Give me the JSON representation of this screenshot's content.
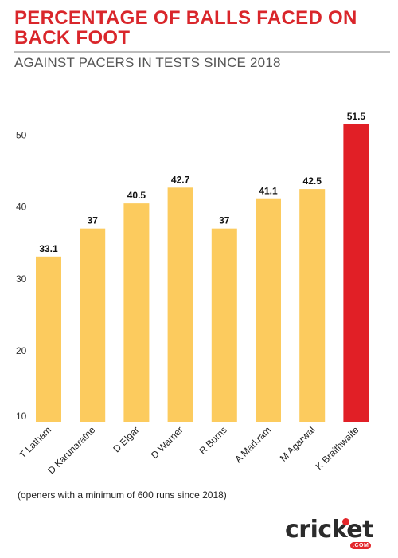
{
  "header": {
    "title": "PERCENTAGE OF BALLS FACED ON BACK FOOT",
    "subtitle": "AGAINST PACERS IN TESTS SINCE 2018"
  },
  "footnote": "(openers with a minimum of 600 runs since 2018)",
  "brand": {
    "name": "cricket",
    "suffix": ".COM",
    "accent": "#e3262b"
  },
  "colors": {
    "bar": "#fccb5e",
    "highlight": "#e11f26",
    "title": "#d9262b"
  },
  "chart_data": {
    "type": "bar",
    "title": "PERCENTAGE OF BALLS FACED ON BACK FOOT",
    "subtitle": "AGAINST PACERS IN TESTS SINCE 2018",
    "categories": [
      "T Latham",
      "D Karunaratne",
      "D Elgar",
      "D Warner",
      "R Burns",
      "A Markram",
      "M Agarwal",
      "K Braithwaite"
    ],
    "values": [
      33.1,
      37,
      40.5,
      42.7,
      37,
      41.1,
      42.5,
      51.5
    ],
    "value_labels": [
      "33.1",
      "37",
      "40.5",
      "42.7",
      "37",
      "41.1",
      "42.5",
      "51.5"
    ],
    "highlight_index": 7,
    "yticks": [
      10,
      20,
      30,
      40,
      50
    ],
    "ylim": [
      10,
      51.5
    ],
    "xlabel": "",
    "ylabel": "",
    "grid": false
  }
}
